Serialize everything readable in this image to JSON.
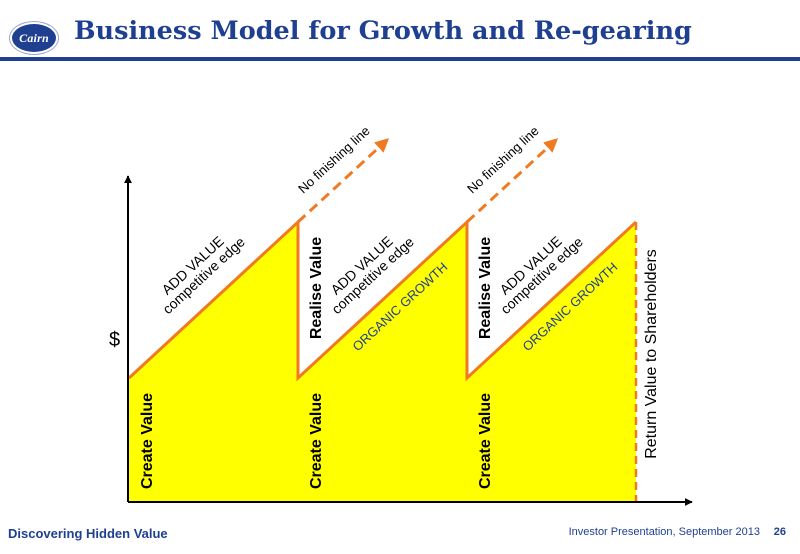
{
  "header": {
    "logo_text": "Cairn",
    "title": "Business Model for Growth and Re-gearing"
  },
  "diagram": {
    "y_axis_label": "$",
    "cycles": [
      {
        "create_label": "Create Value",
        "slope_top": "ADD VALUE",
        "slope_bottom": "competitive edge",
        "realise_label": "Realise Value",
        "extension_label": "No finishing line"
      },
      {
        "create_label": "Create Value",
        "slope_top": "ADD VALUE",
        "slope_bottom": "competitive edge",
        "growth_label": "ORGANIC GROWTH",
        "realise_label": "Realise Value",
        "extension_label": "No finishing line"
      },
      {
        "create_label": "Create Value",
        "slope_top": "ADD VALUE",
        "slope_bottom": "competitive edge",
        "growth_label": "ORGANIC GROWTH"
      }
    ],
    "return_label": "Return Value to Shareholders",
    "colors": {
      "fill": "#ffff00",
      "outline": "#f07a21",
      "axis": "#000000",
      "brand": "#1f3f91"
    }
  },
  "footer": {
    "tagline": "Discovering Hidden Value",
    "meta": "Investor Presentation, September 2013",
    "page_number": "26"
  }
}
